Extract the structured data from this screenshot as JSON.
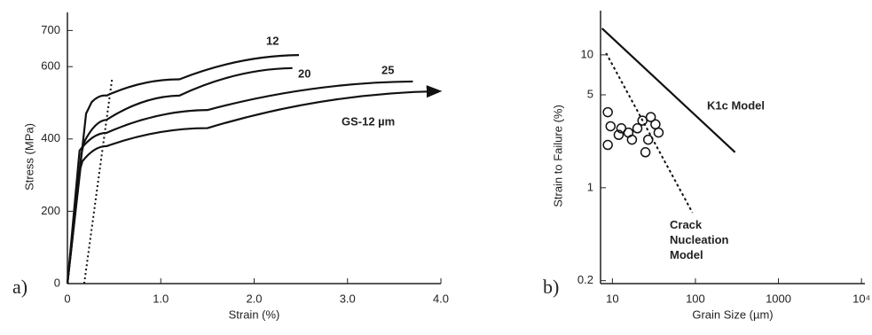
{
  "chart_data": [
    {
      "type": "line",
      "panel": "a)",
      "xlabel": "Strain (%)",
      "ylabel": "Stress (MPa)",
      "xlim": [
        0,
        4
      ],
      "ylim": [
        0,
        750
      ],
      "xticks": [
        0,
        {
          "value": 1,
          "label": "1.0"
        },
        {
          "value": 2,
          "label": "2.0"
        },
        {
          "value": 3,
          "label": "3.0"
        },
        {
          "value": 4,
          "label": "4.0"
        }
      ],
      "yticks": [
        0,
        200,
        400,
        600,
        700
      ],
      "series": [
        {
          "name": "12",
          "color": "#111",
          "x": [
            0,
            0.2,
            0.26,
            0.42,
            1.2,
            2.48
          ],
          "values": [
            0,
            470,
            502,
            520,
            565,
            632
          ]
        },
        {
          "name": "20",
          "color": "#111",
          "x": [
            0,
            0.15,
            0.18,
            0.42,
            1.2,
            2.41
          ],
          "values": [
            0,
            360,
            392,
            453,
            520,
            596
          ]
        },
        {
          "name": "25",
          "color": "#111",
          "x": [
            0,
            0.12,
            0.13,
            0.42,
            1.5,
            3.7
          ],
          "values": [
            0,
            340,
            368,
            417,
            480,
            559
          ]
        },
        {
          "name": "GS-12 µm",
          "color": "#111",
          "x": [
            0,
            0.14,
            0.16,
            0.42,
            1.5,
            3.98
          ],
          "values": [
            0,
            320,
            338,
            380,
            430,
            532
          ],
          "arrow": true
        },
        {
          "color": "#111",
          "x": [
            0.18,
            0.48
          ],
          "values": [
            0,
            569
          ],
          "dash": "2 3"
        }
      ]
    },
    {
      "type": "line",
      "panel": "b)",
      "log": true,
      "xlabel": "Grain Size (µm)",
      "ylabel": "Strain to Failure (%)",
      "xlim": [
        7.2,
        11000
      ],
      "ylim": [
        0.19,
        21.5
      ],
      "xticks": [
        10,
        100,
        1000,
        {
          "value": 10000,
          "label": "10⁴"
        }
      ],
      "yticks": [
        0.2,
        1,
        5,
        10
      ],
      "series": [
        {
          "name": "K1c Model",
          "color": "#111",
          "x": [
            7.5,
            300
          ],
          "values": [
            15.8,
            1.85
          ]
        },
        {
          "name": "Crack Nucleation Model",
          "color": "#111",
          "x": [
            8.4,
            92
          ],
          "values": [
            10.3,
            0.65
          ],
          "dash": "3 3"
        },
        {
          "color": "#111",
          "marker": "circle",
          "x": [
            8.8,
            9.5,
            11.9,
            12.8,
            15.6,
            17.2,
            20,
            23,
            29,
            33,
            36,
            27,
            8.8,
            25
          ],
          "values": [
            3.7,
            2.9,
            2.5,
            2.8,
            2.6,
            2.3,
            2.8,
            3.2,
            3.4,
            3.0,
            2.6,
            2.3,
            2.1,
            1.85
          ]
        }
      ]
    }
  ]
}
